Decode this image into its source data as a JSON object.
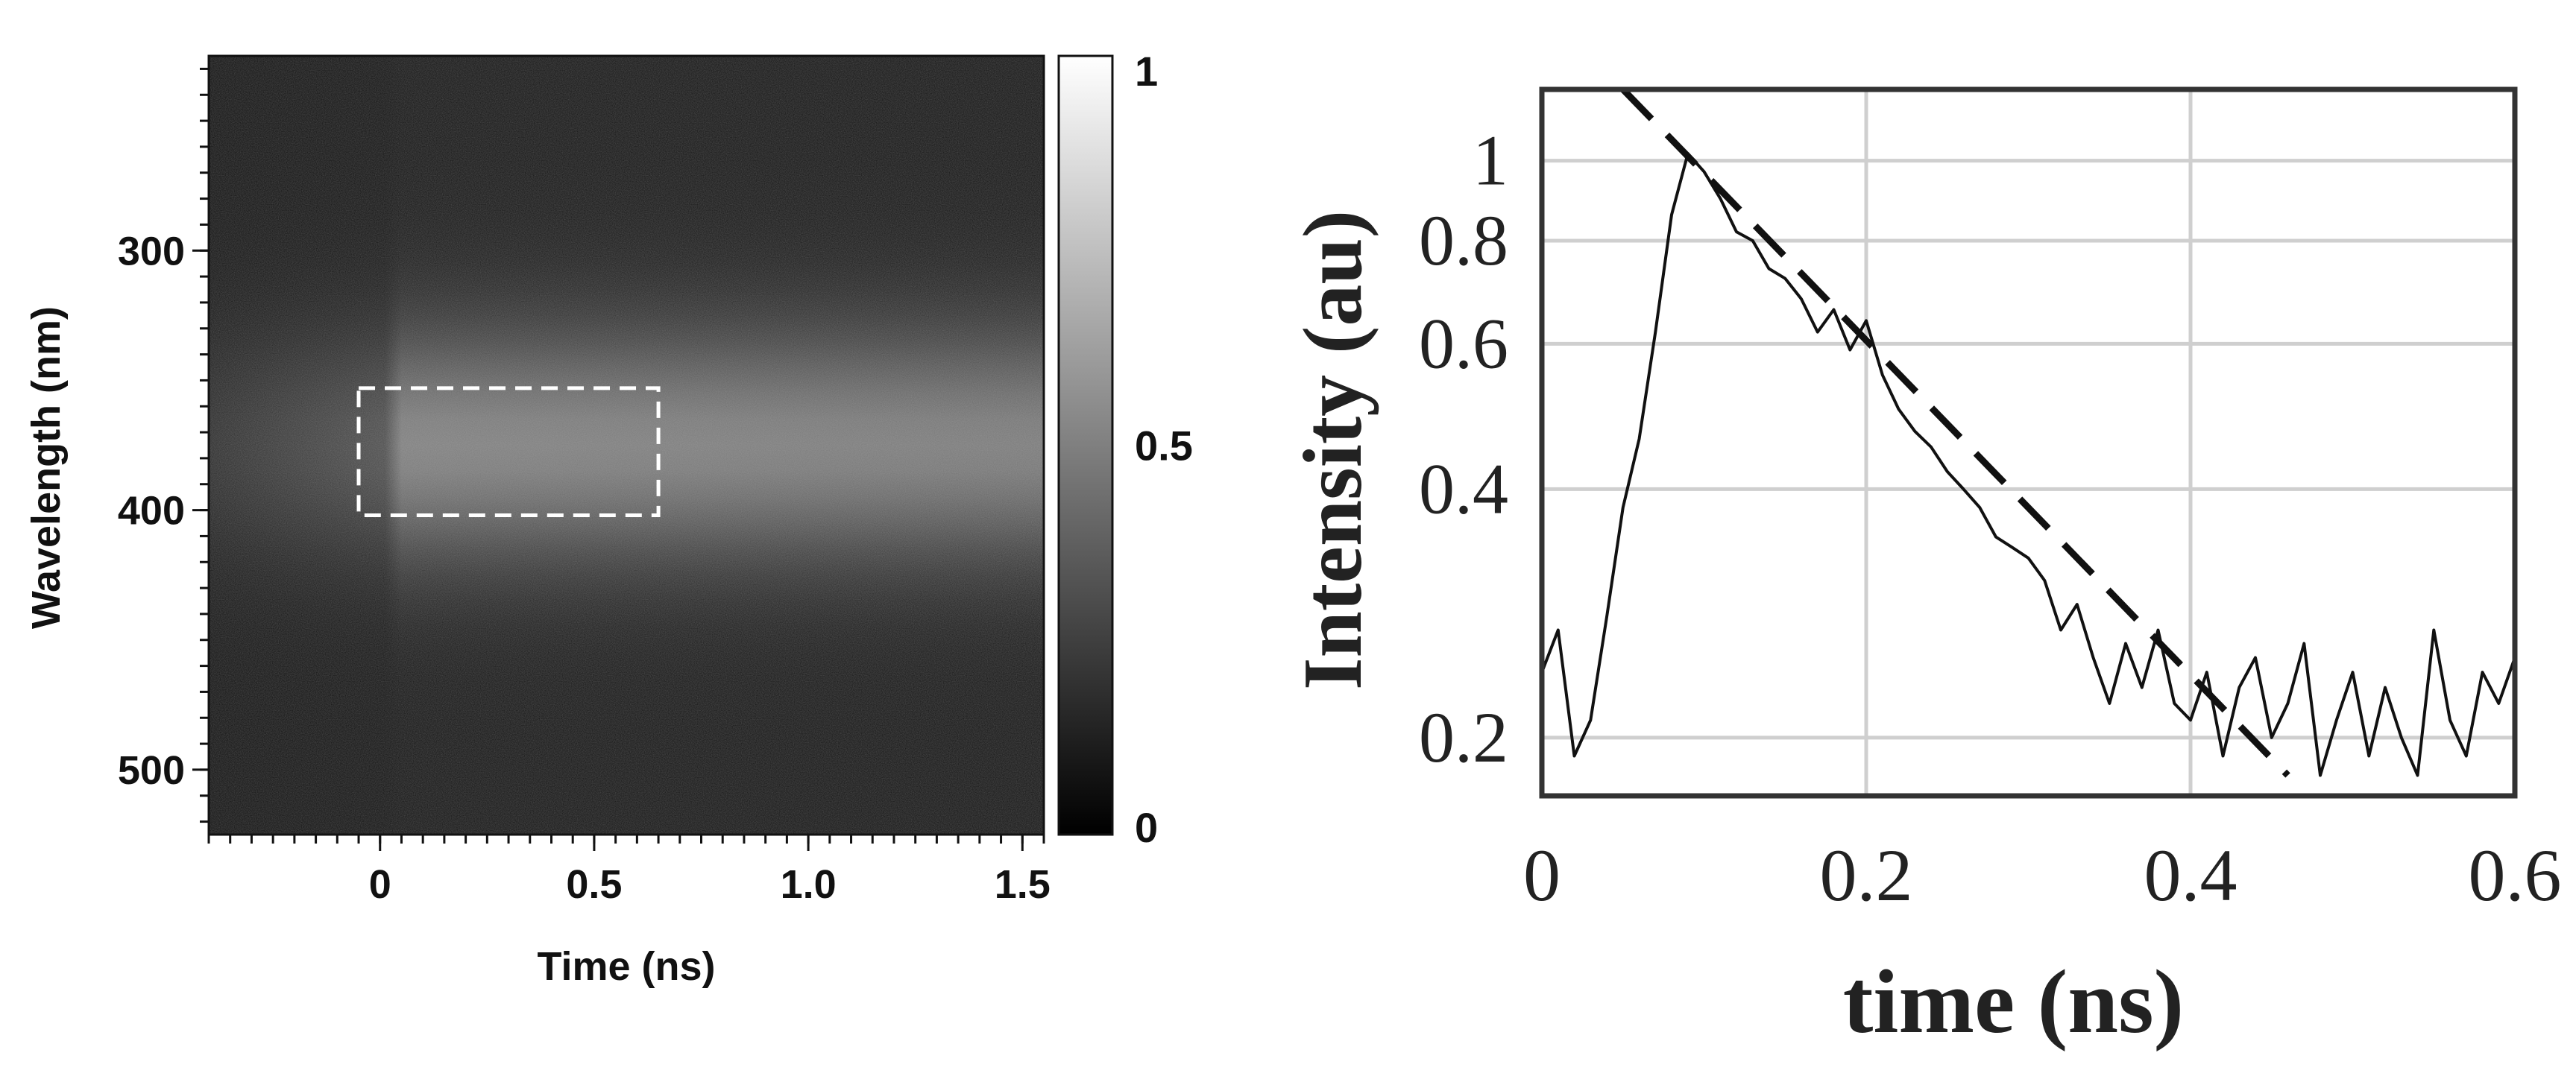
{
  "chart_data": [
    {
      "type": "heatmap",
      "xlabel": "Time (ns)",
      "ylabel": "Wavelength (nm)",
      "xlim": [
        -0.4,
        1.55
      ],
      "ylim": [
        225,
        525
      ],
      "y_inverted": true,
      "x_ticks": [
        "0",
        "0.5",
        "1.0",
        "1.5"
      ],
      "x_tick_values": [
        0,
        0.5,
        1.0,
        1.5
      ],
      "y_ticks": [
        "300",
        "400",
        "500"
      ],
      "y_tick_values": [
        300,
        400,
        500
      ],
      "colorbar": {
        "range": [
          0,
          1
        ],
        "ticks": [
          "1",
          "0.5",
          "0"
        ],
        "tick_values": [
          1,
          0.5,
          0
        ],
        "colormap": "grayscale"
      },
      "intensity_profile": {
        "wavelength_center": 375,
        "wavelength_width": 45,
        "onset_time": 0.05,
        "peak_intensity": 0.42
      },
      "roi_box": {
        "time_range": [
          -0.05,
          0.65
        ],
        "wavelength_range": [
          353,
          402
        ],
        "style": "dashed",
        "color": "#ffffff"
      }
    },
    {
      "type": "line",
      "xlabel": "time (ns)",
      "ylabel": "Intensity (au)",
      "yscale": "log",
      "xlim": [
        0,
        0.6
      ],
      "ylim": [
        0.17,
        1.22
      ],
      "grid": true,
      "x_ticks": [
        "0",
        "0.2",
        "0.4",
        "0.6"
      ],
      "x_tick_values": [
        0,
        0.2,
        0.4,
        0.6
      ],
      "y_ticks": [
        "1",
        "0.8",
        "0.6",
        "0.4",
        "0.2"
      ],
      "y_tick_values": [
        1,
        0.8,
        0.6,
        0.4,
        0.2
      ],
      "series": [
        {
          "style": "solid",
          "color": "#111111",
          "x": [
            0,
            0.01,
            0.02,
            0.03,
            0.04,
            0.05,
            0.06,
            0.07,
            0.08,
            0.09,
            0.1,
            0.11,
            0.12,
            0.13,
            0.14,
            0.15,
            0.16,
            0.17,
            0.18,
            0.19,
            0.2,
            0.21,
            0.22,
            0.23,
            0.24,
            0.25,
            0.26,
            0.27,
            0.28,
            0.29,
            0.3,
            0.31,
            0.32,
            0.33,
            0.34,
            0.35,
            0.36,
            0.37,
            0.38,
            0.39,
            0.4,
            0.41,
            0.42,
            0.43,
            0.44,
            0.45,
            0.46,
            0.47,
            0.48,
            0.49,
            0.5,
            0.51,
            0.52,
            0.53,
            0.54,
            0.55,
            0.56,
            0.57,
            0.58,
            0.59,
            0.6
          ],
          "y": [
            0.24,
            0.27,
            0.19,
            0.21,
            0.28,
            0.38,
            0.46,
            0.62,
            0.86,
            1.02,
            0.97,
            0.9,
            0.82,
            0.8,
            0.74,
            0.72,
            0.68,
            0.62,
            0.66,
            0.59,
            0.64,
            0.55,
            0.5,
            0.47,
            0.45,
            0.42,
            0.4,
            0.38,
            0.35,
            0.34,
            0.33,
            0.31,
            0.27,
            0.29,
            0.25,
            0.22,
            0.26,
            0.23,
            0.27,
            0.22,
            0.21,
            0.24,
            0.19,
            0.23,
            0.25,
            0.2,
            0.22,
            0.26,
            0.18,
            0.21,
            0.24,
            0.19,
            0.23,
            0.2,
            0.18,
            0.27,
            0.21,
            0.19,
            0.24,
            0.22,
            0.25
          ]
        },
        {
          "style": "dashed",
          "color": "#111111",
          "x": [
            0.05,
            0.46
          ],
          "y": [
            1.22,
            0.18
          ]
        }
      ]
    }
  ]
}
